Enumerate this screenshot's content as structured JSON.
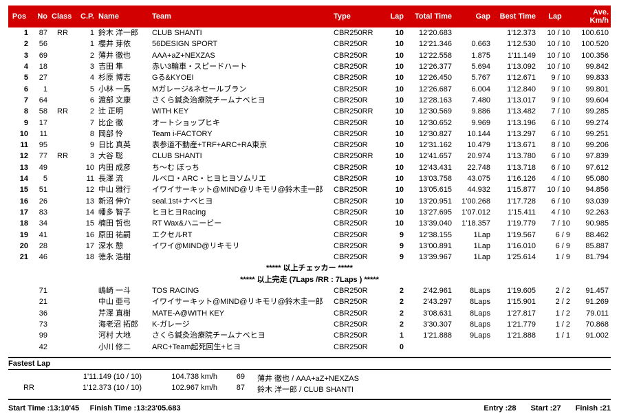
{
  "colors": {
    "header_bg": "#d20000",
    "header_fg": "#ffffff"
  },
  "columns": {
    "pos": "Pos",
    "no": "No",
    "class": "Class",
    "cp": "C.P.",
    "name": "Name",
    "team": "Team",
    "type": "Type",
    "lap": "Lap",
    "total": "Total Time",
    "gap": "Gap",
    "best": "Best Time",
    "blap": "Lap",
    "ave": "Ave.\nKm/h"
  },
  "separators": {
    "checker": "*****  以上チェッカー  *****",
    "finish": "*****  以上完走  (7Laps /RR : 7Laps )  *****"
  },
  "main_rows": [
    {
      "pos": "1",
      "no": "87",
      "class": "RR",
      "cp": "1",
      "name": "鈴木 洋一郎",
      "team": "CLUB SHANTI",
      "type": "CBR250RR",
      "lap": "10",
      "total": "12'20.683",
      "gap": "",
      "best": "1'12.373",
      "blap": "10 / 10",
      "ave": "100.610"
    },
    {
      "pos": "2",
      "no": "56",
      "class": "",
      "cp": "1",
      "name": "櫻井 芽依",
      "team": "56DESIGN SPORT",
      "type": "CBR250R",
      "lap": "10",
      "total": "12'21.346",
      "gap": "0.663",
      "best": "1'12.530",
      "blap": "10 / 10",
      "ave": "100.520"
    },
    {
      "pos": "3",
      "no": "69",
      "class": "",
      "cp": "2",
      "name": "薄井 徹也",
      "team": "AAA+aZ+NEXZAS",
      "type": "CBR250R",
      "lap": "10",
      "total": "12'22.558",
      "gap": "1.875",
      "best": "1'11.149",
      "blap": "10 / 10",
      "ave": "100.356"
    },
    {
      "pos": "4",
      "no": "18",
      "class": "",
      "cp": "3",
      "name": "吉田 隼",
      "team": "赤い3輪車・スピードハート",
      "type": "CBR250R",
      "lap": "10",
      "total": "12'26.377",
      "gap": "5.694",
      "best": "1'13.092",
      "blap": "10 / 10",
      "ave": "99.842"
    },
    {
      "pos": "5",
      "no": "27",
      "class": "",
      "cp": "4",
      "name": "杉原 博志",
      "team": "Gる&KYOEI",
      "type": "CBR250R",
      "lap": "10",
      "total": "12'26.450",
      "gap": "5.767",
      "best": "1'12.671",
      "blap": "9 / 10",
      "ave": "99.833"
    },
    {
      "pos": "6",
      "no": "1",
      "class": "",
      "cp": "5",
      "name": "小林 一馬",
      "team": "Mガレージ&ネセールブラン",
      "type": "CBR250R",
      "lap": "10",
      "total": "12'26.687",
      "gap": "6.004",
      "best": "1'12.840",
      "blap": "9 / 10",
      "ave": "99.801"
    },
    {
      "pos": "7",
      "no": "64",
      "class": "",
      "cp": "6",
      "name": "渡部 文康",
      "team": "さくら鍼灸治療院チームナベヒヨ",
      "type": "CBR250R",
      "lap": "10",
      "total": "12'28.163",
      "gap": "7.480",
      "best": "1'13.017",
      "blap": "9 / 10",
      "ave": "99.604"
    },
    {
      "pos": "8",
      "no": "58",
      "class": "RR",
      "cp": "2",
      "name": "辻 正明",
      "team": "WITH KEY",
      "type": "CBR250RR",
      "lap": "10",
      "total": "12'30.569",
      "gap": "9.886",
      "best": "1'13.482",
      "blap": "7 / 10",
      "ave": "99.285"
    },
    {
      "pos": "9",
      "no": "17",
      "class": "",
      "cp": "7",
      "name": "比企 徹",
      "team": "オートショップヒキ",
      "type": "CBR250R",
      "lap": "10",
      "total": "12'30.652",
      "gap": "9.969",
      "best": "1'13.196",
      "blap": "6 / 10",
      "ave": "99.274"
    },
    {
      "pos": "10",
      "no": "11",
      "class": "",
      "cp": "8",
      "name": "岡部 怜",
      "team": "Team i-FACTORY",
      "type": "CBR250R",
      "lap": "10",
      "total": "12'30.827",
      "gap": "10.144",
      "best": "1'13.297",
      "blap": "6 / 10",
      "ave": "99.251"
    },
    {
      "pos": "11",
      "no": "95",
      "class": "",
      "cp": "9",
      "name": "日比 真英",
      "team": "表参道不動産+TRF+ARC+RA東京",
      "type": "CBR250R",
      "lap": "10",
      "total": "12'31.162",
      "gap": "10.479",
      "best": "1'13.671",
      "blap": "8 / 10",
      "ave": "99.206"
    },
    {
      "pos": "12",
      "no": "77",
      "class": "RR",
      "cp": "3",
      "name": "大谷 聡",
      "team": "CLUB SHANTI",
      "type": "CBR250RR",
      "lap": "10",
      "total": "12'41.657",
      "gap": "20.974",
      "best": "1'13.780",
      "blap": "6 / 10",
      "ave": "97.839"
    },
    {
      "pos": "13",
      "no": "49",
      "class": "",
      "cp": "10",
      "name": "内田 成彦",
      "team": "ち～む ぼっち",
      "type": "CBR250R",
      "lap": "10",
      "total": "12'43.431",
      "gap": "22.748",
      "best": "1'13.718",
      "blap": "6 / 10",
      "ave": "97.612"
    },
    {
      "pos": "14",
      "no": "5",
      "class": "",
      "cp": "11",
      "name": "長澤 流",
      "team": "ルベロ・ARC・ヒヨヒヨソムリエ",
      "type": "CBR250R",
      "lap": "10",
      "total": "13'03.758",
      "gap": "43.075",
      "best": "1'16.126",
      "blap": "4 / 10",
      "ave": "95.080"
    },
    {
      "pos": "15",
      "no": "51",
      "class": "",
      "cp": "12",
      "name": "中山 雅行",
      "team": "イワイサーキット@MIND@リキモリ@鈴木圭一郎",
      "type": "CBR250R",
      "lap": "10",
      "total": "13'05.615",
      "gap": "44.932",
      "best": "1'15.877",
      "blap": "10 / 10",
      "ave": "94.856"
    },
    {
      "pos": "16",
      "no": "26",
      "class": "",
      "cp": "13",
      "name": "新沼 伸介",
      "team": "seal.1st+ナベヒヨ",
      "type": "CBR250R",
      "lap": "10",
      "total": "13'20.951",
      "gap": "1'00.268",
      "best": "1'17.728",
      "blap": "6 / 10",
      "ave": "93.039"
    },
    {
      "pos": "17",
      "no": "83",
      "class": "",
      "cp": "14",
      "name": "幡多 智子",
      "team": "ヒヨヒヨRacing",
      "type": "CBR250R",
      "lap": "10",
      "total": "13'27.695",
      "gap": "1'07.012",
      "best": "1'15.411",
      "blap": "4 / 10",
      "ave": "92.263"
    },
    {
      "pos": "18",
      "no": "34",
      "class": "",
      "cp": "15",
      "name": "楠田 哲也",
      "team": "RT Wax&ハニービー",
      "type": "CBR250R",
      "lap": "10",
      "total": "13'39.040",
      "gap": "1'18.357",
      "best": "1'19.779",
      "blap": "7 / 10",
      "ave": "90.985"
    },
    {
      "pos": "19",
      "no": "41",
      "class": "",
      "cp": "16",
      "name": "原田 祐嗣",
      "team": "エクセルRT",
      "type": "CBR250R",
      "lap": "9",
      "total": "12'38.155",
      "gap": "1Lap",
      "best": "1'19.567",
      "blap": "6 / 9",
      "ave": "88.462"
    },
    {
      "pos": "20",
      "no": "28",
      "class": "",
      "cp": "17",
      "name": "深水 憩",
      "team": "イワイ@MIND@リキモリ",
      "type": "CBR250R",
      "lap": "9",
      "total": "13'00.891",
      "gap": "1Lap",
      "best": "1'16.010",
      "blap": "6 / 9",
      "ave": "85.887"
    },
    {
      "pos": "21",
      "no": "46",
      "class": "",
      "cp": "18",
      "name": "徳永 浩樹",
      "team": "",
      "type": "CBR250R",
      "lap": "9",
      "total": "13'39.967",
      "gap": "1Lap",
      "best": "1'25.614",
      "blap": "1 / 9",
      "ave": "81.794"
    }
  ],
  "dnf_rows": [
    {
      "no": "71",
      "name": "嶋崎 一斗",
      "team": "TOS  RACING",
      "type": "CBR250R",
      "lap": "2",
      "total": "2'42.961",
      "gap": "8Laps",
      "best": "1'19.605",
      "blap": "2 / 2",
      "ave": "91.457"
    },
    {
      "no": "21",
      "name": "中山 亜弓",
      "team": "イワイサーキット@MIND@リキモリ@鈴木圭一郎",
      "type": "CBR250R",
      "lap": "2",
      "total": "2'43.297",
      "gap": "8Laps",
      "best": "1'15.901",
      "blap": "2 / 2",
      "ave": "91.269"
    },
    {
      "no": "36",
      "name": "芹澤 直樹",
      "team": "MATE-A@WITH KEY",
      "type": "CBR250R",
      "lap": "2",
      "total": "3'08.631",
      "gap": "8Laps",
      "best": "1'27.817",
      "blap": "1 / 2",
      "ave": "79.011"
    },
    {
      "no": "73",
      "name": "海老沼 拓郎",
      "team": "K-ガレージ",
      "type": "CBR250R",
      "lap": "2",
      "total": "3'30.307",
      "gap": "8Laps",
      "best": "1'21.779",
      "blap": "1 / 2",
      "ave": "70.868"
    },
    {
      "no": "99",
      "name": "河村 大地",
      "team": "さくら鍼灸治療院チームナベヒヨ",
      "type": "CBR250R",
      "lap": "1",
      "total": "1'21.888",
      "gap": "9Laps",
      "best": "1'21.888",
      "blap": "1 / 1",
      "ave": "91.002"
    },
    {
      "no": "42",
      "name": "小川 修二",
      "team": "ARC+Team起死回生+ヒヨ",
      "type": "CBR250R",
      "lap": "0",
      "total": "",
      "gap": "",
      "best": "",
      "blap": "",
      "ave": ""
    }
  ],
  "fastest": {
    "title": "Fastest Lap",
    "rows": [
      {
        "class": "",
        "time": "1'11.149 (10 / 10)",
        "speed": "104.738 km/h",
        "no": "69",
        "rider": "薄井 徹也 / AAA+aZ+NEXZAS"
      },
      {
        "class": "RR",
        "time": "1'12.373 (10 / 10)",
        "speed": "102.967 km/h",
        "no": "87",
        "rider": "鈴木 洋一郎 / CLUB SHANTI"
      }
    ]
  },
  "footer": {
    "start_time": "Start Time :13:10'45",
    "finish_time": "Finish Time :13:23'05.683",
    "entry": "Entry  :28",
    "start": "Start  :27",
    "finish": "Finish  :21"
  }
}
